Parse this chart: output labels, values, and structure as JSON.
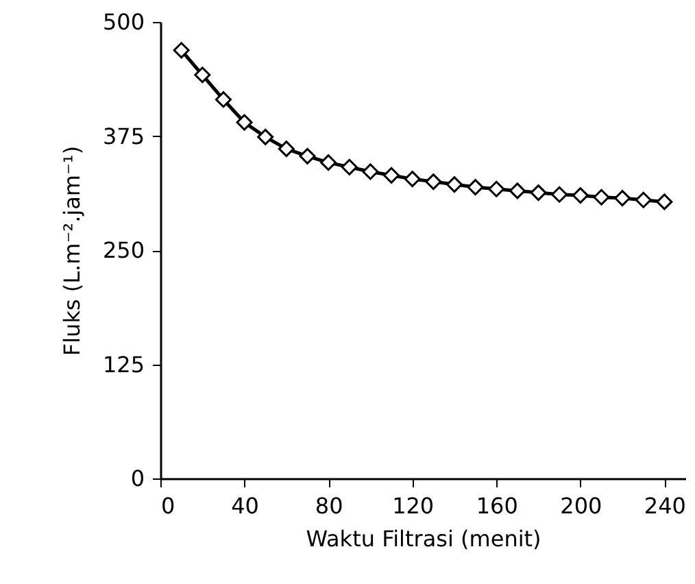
{
  "chart_data": {
    "type": "line",
    "xlabel": "Waktu Filtrasi (menit)",
    "ylabel": "Fluks (L.m⁻².jam⁻¹)",
    "x": [
      10,
      20,
      30,
      40,
      50,
      60,
      70,
      80,
      90,
      100,
      110,
      120,
      130,
      140,
      150,
      160,
      170,
      180,
      190,
      200,
      210,
      220,
      230,
      240
    ],
    "series": [
      {
        "color": "#000000",
        "values": [
          469,
          442,
          415,
          390,
          374,
          361,
          353,
          346,
          341,
          336,
          332,
          328,
          325,
          322,
          319,
          317,
          315,
          313,
          311,
          310,
          308,
          307,
          305,
          303
        ]
      }
    ],
    "xlim": [
      0,
      250
    ],
    "xticks": [
      0,
      40,
      80,
      120,
      160,
      200,
      240
    ],
    "ylim": [
      0,
      500
    ],
    "yticks": [
      0,
      125,
      250,
      375,
      500
    ],
    "marker": "diamond",
    "line_style": "solid"
  }
}
